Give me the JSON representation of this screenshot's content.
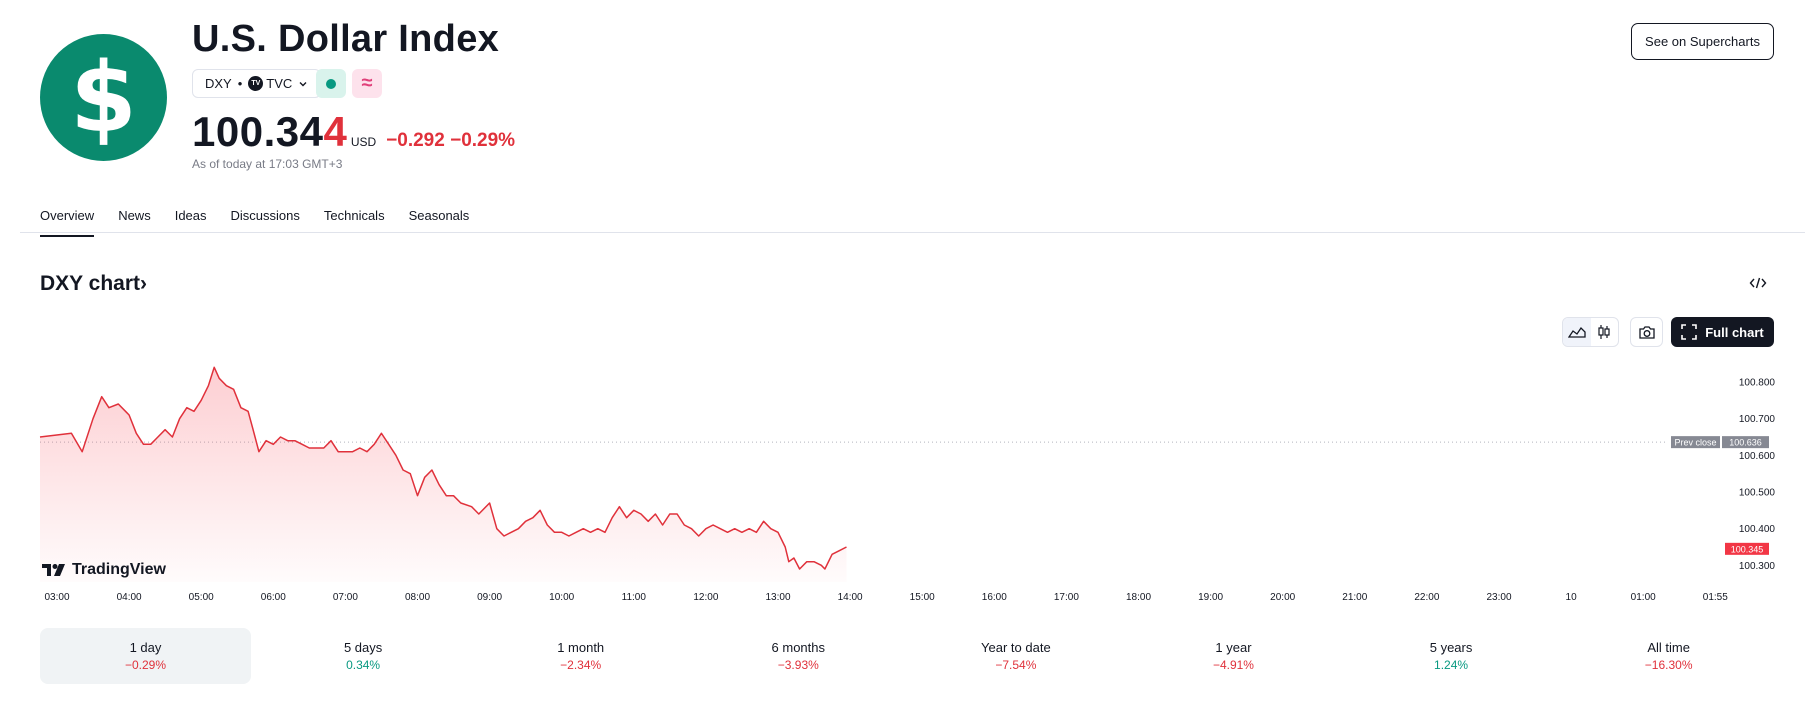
{
  "header": {
    "logo_symbol": "$",
    "title": "U.S. Dollar Index",
    "symbol": "DXY",
    "exchange_badge": "TV",
    "exchange": "TVC",
    "price_main": "100.34",
    "price_last_digit": "4",
    "currency": "USD",
    "change": "−0.292 −0.29%",
    "as_of": "As of today at 17:03 GMT+3",
    "see_supercharts": "See on Supercharts",
    "status_wave_icon": "≈"
  },
  "tabs": [
    "Overview",
    "News",
    "Ideas",
    "Discussions",
    "Technicals",
    "Seasonals"
  ],
  "active_tab": "Overview",
  "chart_section": {
    "title": "DXY chart",
    "title_chevron": "›",
    "full_chart_label": "Full chart",
    "watermark": "TradingView"
  },
  "colors": {
    "accent_red": "#e0313b",
    "accent_green": "#089981",
    "logo_green": "#0a8a6e"
  },
  "chart_data": {
    "type": "area",
    "x_ticks": [
      "03:00",
      "04:00",
      "05:00",
      "06:00",
      "07:00",
      "08:00",
      "09:00",
      "10:00",
      "11:00",
      "12:00",
      "13:00",
      "14:00",
      "15:00",
      "16:00",
      "17:00",
      "18:00",
      "19:00",
      "20:00",
      "21:00",
      "22:00",
      "23:00",
      "10",
      "01:00",
      "01:55"
    ],
    "y_ticks": [
      "100.800",
      "100.700",
      "100.600",
      "100.500",
      "100.400",
      "100.300"
    ],
    "ylim": [
      100.26,
      100.86
    ],
    "prev_close_label": "Prev close",
    "prev_close_value": "100.636",
    "prev_close": 100.636,
    "last_price_label": "100.345",
    "last_price": 100.345,
    "series": [
      {
        "values": [
          [
            0.0,
            100.65
          ],
          [
            0.2,
            100.66
          ],
          [
            0.35,
            100.61
          ],
          [
            0.5,
            100.7
          ],
          [
            0.62,
            100.76
          ],
          [
            0.72,
            100.73
          ],
          [
            0.85,
            100.74
          ],
          [
            1.0,
            100.71
          ],
          [
            1.1,
            100.66
          ],
          [
            1.2,
            100.63
          ],
          [
            1.3,
            100.63
          ],
          [
            1.4,
            100.65
          ],
          [
            1.5,
            100.67
          ],
          [
            1.6,
            100.65
          ],
          [
            1.7,
            100.7
          ],
          [
            1.8,
            100.73
          ],
          [
            1.9,
            100.72
          ],
          [
            2.0,
            100.75
          ],
          [
            2.1,
            100.79
          ],
          [
            2.18,
            100.84
          ],
          [
            2.25,
            100.81
          ],
          [
            2.35,
            100.79
          ],
          [
            2.45,
            100.78
          ],
          [
            2.55,
            100.73
          ],
          [
            2.65,
            100.72
          ],
          [
            2.72,
            100.67
          ],
          [
            2.8,
            100.61
          ],
          [
            2.9,
            100.64
          ],
          [
            3.0,
            100.63
          ],
          [
            3.1,
            100.65
          ],
          [
            3.2,
            100.64
          ],
          [
            3.3,
            100.64
          ],
          [
            3.4,
            100.63
          ],
          [
            3.5,
            100.62
          ],
          [
            3.6,
            100.62
          ],
          [
            3.7,
            100.62
          ],
          [
            3.8,
            100.64
          ],
          [
            3.9,
            100.61
          ],
          [
            4.0,
            100.61
          ],
          [
            4.1,
            100.61
          ],
          [
            4.2,
            100.62
          ],
          [
            4.3,
            100.61
          ],
          [
            4.4,
            100.63
          ],
          [
            4.5,
            100.66
          ],
          [
            4.6,
            100.63
          ],
          [
            4.7,
            100.6
          ],
          [
            4.8,
            100.56
          ],
          [
            4.9,
            100.55
          ],
          [
            5.0,
            100.49
          ],
          [
            5.1,
            100.54
          ],
          [
            5.2,
            100.56
          ],
          [
            5.3,
            100.52
          ],
          [
            5.4,
            100.49
          ],
          [
            5.5,
            100.49
          ],
          [
            5.6,
            100.47
          ],
          [
            5.75,
            100.46
          ],
          [
            5.85,
            100.44
          ],
          [
            6.0,
            100.47
          ],
          [
            6.1,
            100.4
          ],
          [
            6.2,
            100.38
          ],
          [
            6.3,
            100.39
          ],
          [
            6.4,
            100.4
          ],
          [
            6.5,
            100.42
          ],
          [
            6.6,
            100.43
          ],
          [
            6.7,
            100.45
          ],
          [
            6.8,
            100.41
          ],
          [
            6.9,
            100.39
          ],
          [
            7.0,
            100.39
          ],
          [
            7.1,
            100.38
          ],
          [
            7.2,
            100.39
          ],
          [
            7.3,
            100.4
          ],
          [
            7.4,
            100.39
          ],
          [
            7.5,
            100.4
          ],
          [
            7.6,
            100.39
          ],
          [
            7.7,
            100.43
          ],
          [
            7.8,
            100.46
          ],
          [
            7.9,
            100.43
          ],
          [
            8.0,
            100.45
          ],
          [
            8.1,
            100.44
          ],
          [
            8.2,
            100.42
          ],
          [
            8.3,
            100.44
          ],
          [
            8.4,
            100.41
          ],
          [
            8.5,
            100.44
          ],
          [
            8.6,
            100.44
          ],
          [
            8.7,
            100.41
          ],
          [
            8.8,
            100.4
          ],
          [
            8.9,
            100.38
          ],
          [
            9.0,
            100.4
          ],
          [
            9.1,
            100.41
          ],
          [
            9.2,
            100.4
          ],
          [
            9.3,
            100.39
          ],
          [
            9.4,
            100.4
          ],
          [
            9.5,
            100.39
          ],
          [
            9.6,
            100.4
          ],
          [
            9.7,
            100.39
          ],
          [
            9.8,
            100.42
          ],
          [
            9.9,
            100.4
          ],
          [
            10.0,
            100.39
          ],
          [
            10.1,
            100.35
          ],
          [
            10.15,
            100.31
          ],
          [
            10.22,
            100.32
          ],
          [
            10.3,
            100.29
          ],
          [
            10.4,
            100.31
          ],
          [
            10.5,
            100.31
          ],
          [
            10.6,
            100.3
          ],
          [
            10.65,
            100.29
          ],
          [
            10.75,
            100.33
          ],
          [
            10.85,
            100.34
          ],
          [
            10.95,
            100.35
          ]
        ]
      }
    ]
  },
  "periods": [
    {
      "label": "1 day",
      "change": "−0.29%",
      "dir": "neg"
    },
    {
      "label": "5 days",
      "change": "0.34%",
      "dir": "pos"
    },
    {
      "label": "1 month",
      "change": "−2.34%",
      "dir": "neg"
    },
    {
      "label": "6 months",
      "change": "−3.93%",
      "dir": "neg"
    },
    {
      "label": "Year to date",
      "change": "−7.54%",
      "dir": "neg"
    },
    {
      "label": "1 year",
      "change": "−4.91%",
      "dir": "neg"
    },
    {
      "label": "5 years",
      "change": "1.24%",
      "dir": "pos"
    },
    {
      "label": "All time",
      "change": "−16.30%",
      "dir": "neg"
    }
  ],
  "selected_period": "1 day"
}
